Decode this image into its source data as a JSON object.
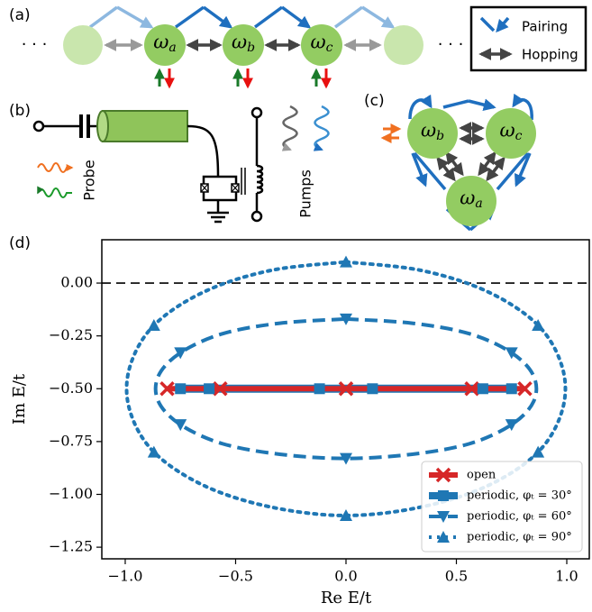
{
  "panels": {
    "a": "(a)",
    "b": "(b)",
    "c": "(c)",
    "d": "(d)"
  },
  "chain": {
    "nodes": [
      "ωa",
      "ωb",
      "ωc"
    ],
    "ellipsis": [
      "· · ·",
      "· · ·"
    ]
  },
  "legend_box": {
    "pairing": "Pairing",
    "hopping": "Hopping"
  },
  "circuit": {
    "probe": "Probe",
    "pumps": "Pumps"
  },
  "triangle": {
    "nodes": [
      "ωb",
      "ωc",
      "ωa"
    ]
  },
  "chart_data": {
    "type": "line",
    "xlabel": "Re E/t",
    "ylabel": "Im E/t",
    "xlim": [
      -1.106,
      1.102
    ],
    "ylim": [
      -1.305,
      0.205
    ],
    "xticks": [
      {
        "value": -1,
        "label": "−1.0"
      },
      {
        "value": -0.5,
        "label": "−0.5"
      },
      {
        "value": 0,
        "label": "0.0"
      },
      {
        "value": 0.5,
        "label": "0.5"
      },
      {
        "value": 1,
        "label": "1.0"
      }
    ],
    "yticks": [
      {
        "value": 0,
        "label": "0.00"
      },
      {
        "value": -0.25,
        "label": "−0.25"
      },
      {
        "value": -0.5,
        "label": "−0.50"
      },
      {
        "value": -0.75,
        "label": "−0.75"
      },
      {
        "value": -1,
        "label": "−1.00"
      },
      {
        "value": -1.25,
        "label": "−1.25"
      }
    ],
    "reference_line": 0,
    "legend": "lower right",
    "series": [
      {
        "name": "open",
        "color": "#d62728",
        "style": "solid",
        "marker": "x",
        "markevery": 1,
        "x": [
          -0.81,
          -0.57,
          0,
          0.57,
          0.81
        ],
        "values": [
          -0.5,
          -0.5,
          -0.5,
          -0.5,
          -0.5
        ]
      },
      {
        "name": "periodic, φₜ = 30°",
        "color": "#1f77b4",
        "style": "solid",
        "marker": "s",
        "markevery": 1,
        "x": [
          -0.75,
          -0.62,
          -0.12,
          0.12,
          0.62,
          0.75
        ],
        "values": [
          -0.5,
          -0.5,
          -0.5,
          -0.5,
          -0.5,
          -0.5
        ]
      },
      {
        "name": "periodic, φₜ = 60°",
        "color": "#1f77b4",
        "style": "dashed",
        "marker": "v",
        "markevery": 3,
        "x": [
          0,
          0.3,
          0.56,
          0.75,
          0.85,
          0.85,
          0.75,
          0.56,
          0.3,
          0,
          -0.3,
          -0.56,
          -0.75,
          -0.85,
          -0.85,
          -0.75,
          -0.56,
          -0.3,
          0
        ],
        "values": [
          -0.17,
          -0.19,
          -0.24,
          -0.33,
          -0.44,
          -0.56,
          -0.67,
          -0.76,
          -0.81,
          -0.83,
          -0.81,
          -0.76,
          -0.67,
          -0.56,
          -0.44,
          -0.33,
          -0.24,
          -0.19,
          -0.17
        ]
      },
      {
        "name": "periodic, φₜ = 90°",
        "color": "#1f77b4",
        "style": "dotted",
        "marker": "^",
        "markevery": 3,
        "x": [
          0,
          0.34,
          0.64,
          0.87,
          0.98,
          0.98,
          0.87,
          0.64,
          0.34,
          0,
          -0.34,
          -0.64,
          -0.87,
          -0.98,
          -0.98,
          -0.87,
          -0.64,
          -0.34,
          0
        ],
        "values": [
          0.1,
          0.06,
          -0.04,
          -0.2,
          -0.4,
          -0.6,
          -0.8,
          -0.96,
          -1.06,
          -1.1,
          -1.06,
          -0.96,
          -0.8,
          -0.6,
          -0.4,
          -0.2,
          -0.04,
          0.06,
          0.1
        ]
      }
    ]
  }
}
